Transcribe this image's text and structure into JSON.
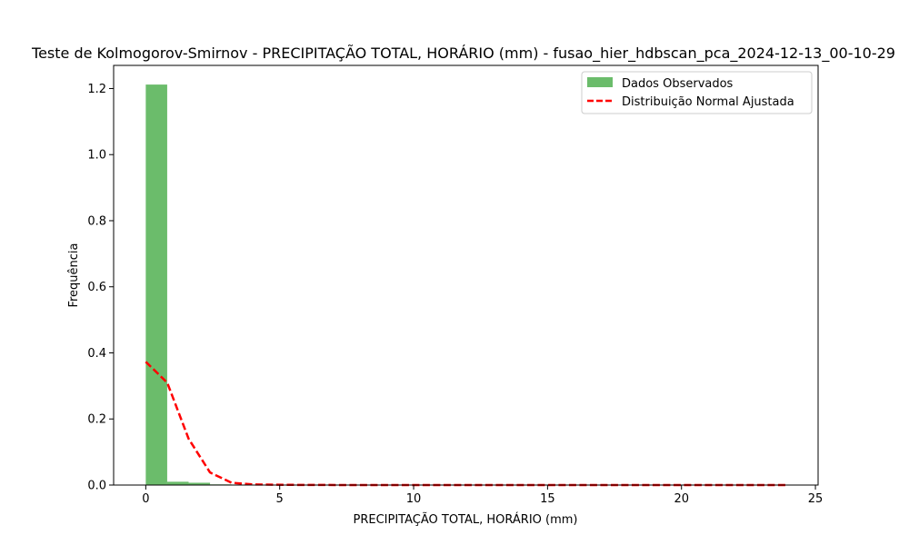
{
  "chart_data": {
    "type": "bar",
    "title": "Teste de Kolmogorov-Smirnov - PRECIPITAÇÃO TOTAL, HORÁRIO (mm) - fusao_hier_hdbscan_pca_2024-12-13_00-10-29",
    "xlabel": "PRECIPITAÇÃO TOTAL, HORÁRIO (mm)",
    "ylabel": "Frequência",
    "xlim": [
      -1.2,
      25.1
    ],
    "ylim": [
      0,
      1.27
    ],
    "xticks": [
      0,
      5,
      10,
      15,
      20,
      25
    ],
    "yticks": [
      0.0,
      0.2,
      0.4,
      0.6,
      0.8,
      1.0,
      1.2
    ],
    "grid": false,
    "legend_position": "top-right",
    "histogram": {
      "name": "Dados Observados",
      "color": "#2ca02c",
      "bin_edges": [
        0,
        0.8,
        1.6,
        2.4,
        3.2,
        4.0,
        4.8,
        5.6,
        6.4,
        7.2,
        8.0,
        8.8,
        9.6,
        10.4,
        11.2,
        12.0,
        12.8,
        13.6,
        14.4,
        15.2,
        16.0,
        16.8,
        17.6,
        18.4,
        19.2,
        20.0,
        20.8,
        21.6,
        22.4,
        23.2,
        24.0
      ],
      "values": [
        1.212,
        0.01,
        0.007,
        0.002,
        0.001,
        0.0005,
        0.0003,
        0.0002,
        0.0001,
        0.0001,
        0.0001,
        0,
        0,
        0,
        0,
        0,
        0,
        0,
        0,
        0,
        0,
        0,
        0,
        0,
        0,
        0,
        0,
        0,
        0,
        0.0001
      ]
    },
    "fit_line": {
      "name": "Distribuição Normal Ajustada",
      "color": "#ff0000",
      "style": "dashed",
      "x": [
        0,
        0.8,
        1.6,
        2.4,
        3.2,
        4.0,
        4.8,
        5.6,
        6.4,
        8.0,
        10.0,
        12.0,
        14.0,
        16.0,
        18.0,
        20.0,
        22.0,
        23.9
      ],
      "y": [
        0.373,
        0.31,
        0.14,
        0.038,
        0.007,
        0.002,
        0.001,
        0.0005,
        0.0002,
        0.0001,
        0.0001,
        0.0001,
        0.0001,
        0.0001,
        0.0001,
        0.0001,
        0.0001,
        0.0001
      ]
    }
  }
}
